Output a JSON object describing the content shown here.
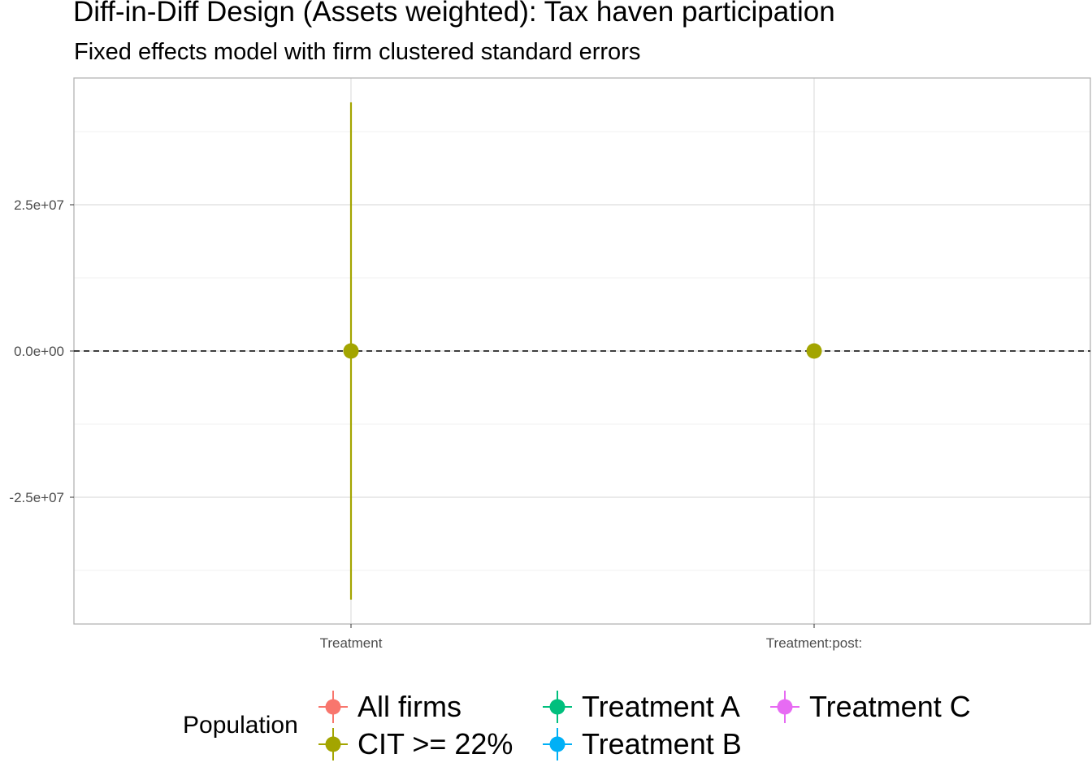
{
  "chart_data": {
    "type": "scatter",
    "title": "Diff-in-Diff Design (Assets weighted): Tax haven participation",
    "subtitle": "Fixed effects model with firm clustered standard errors",
    "xlabel": "",
    "ylabel": "",
    "categories": [
      "Treatment",
      "Treatment:post:"
    ],
    "y_ticks": [
      {
        "value": 25000000,
        "label": "2.5e+07"
      },
      {
        "value": 0,
        "label": "0.0e+00"
      },
      {
        "value": -25000000,
        "label": "-2.5e+07"
      }
    ],
    "ylim": [
      -46500000,
      46500000
    ],
    "reference_line": {
      "y": 0,
      "style": "dashed"
    },
    "grid": true,
    "legend": {
      "title": "Population",
      "position": "bottom",
      "entries": [
        {
          "name": "All firms",
          "color": "#F8766D"
        },
        {
          "name": "CIT >= 22%",
          "color": "#A3A500"
        },
        {
          "name": "Treatment A",
          "color": "#00BF7D"
        },
        {
          "name": "Treatment B",
          "color": "#00B0F6"
        },
        {
          "name": "Treatment C",
          "color": "#E76BF3"
        }
      ]
    },
    "series": [
      {
        "name": "CIT >= 22%",
        "color": "#A3A500",
        "points": [
          {
            "category": "Treatment",
            "estimate": 0,
            "ci_low": -42500000,
            "ci_high": 42500000
          },
          {
            "category": "Treatment:post:",
            "estimate": 0,
            "ci_low": 0,
            "ci_high": 0
          }
        ]
      }
    ]
  }
}
